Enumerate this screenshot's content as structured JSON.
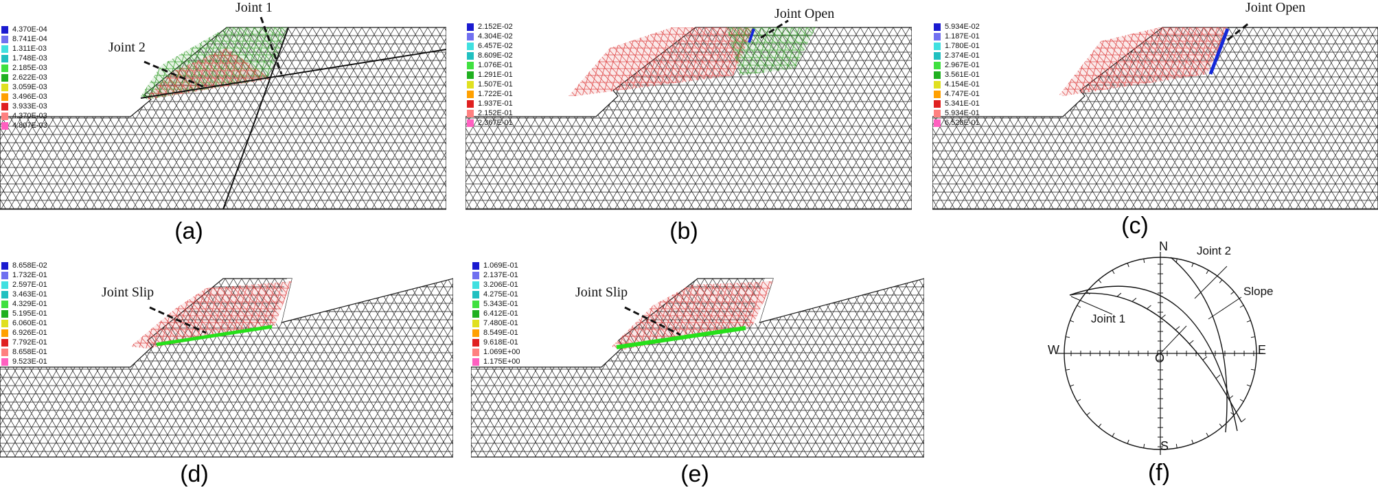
{
  "colors": {
    "mesh": "#1a1a1a",
    "blue_joint": "#1428d8",
    "green_joint": "#26e01a",
    "deform_red": "#e04a4a",
    "deform_green": "#3aa030",
    "deform_blue": "#2c4cc8",
    "legend_scale": [
      "#1a1ad0",
      "#7070f0",
      "#40e0e0",
      "#20c0c0",
      "#40e040",
      "#20b020",
      "#e0e020",
      "#ffa000",
      "#e02020",
      "#ff8080",
      "#ff60c0",
      "#404040"
    ]
  },
  "panels": {
    "a": {
      "caption": "(a)",
      "legend": [
        "4.370E-04",
        "8.741E-04",
        "1.311E-03",
        "1.748E-03",
        "2.185E-03",
        "2.622E-03",
        "3.059E-03",
        "3.496E-03",
        "3.933E-03",
        "4.370E-03",
        "4.807E-03"
      ],
      "labels": {
        "joint1": "Joint 1",
        "joint2": "Joint 2"
      }
    },
    "b": {
      "caption": "(b)",
      "legend": [
        "2.152E-02",
        "4.304E-02",
        "6.457E-02",
        "8.609E-02",
        "1.076E-01",
        "1.291E-01",
        "1.507E-01",
        "1.722E-01",
        "1.937E-01",
        "2.152E-01",
        "2.367E-01"
      ],
      "labels": {
        "joint_open": "Joint Open"
      }
    },
    "c": {
      "caption": "(c)",
      "legend": [
        "5.934E-02",
        "1.187E-01",
        "1.780E-01",
        "2.374E-01",
        "2.967E-01",
        "3.561E-01",
        "4.154E-01",
        "4.747E-01",
        "5.341E-01",
        "5.934E-01",
        "6.528E-01"
      ],
      "labels": {
        "joint_open": "Joint Open"
      }
    },
    "d": {
      "caption": "(d)",
      "legend": [
        "8.658E-02",
        "1.732E-01",
        "2.597E-01",
        "3.463E-01",
        "4.329E-01",
        "5.195E-01",
        "6.060E-01",
        "6.926E-01",
        "7.792E-01",
        "8.658E-01",
        "9.523E-01"
      ],
      "labels": {
        "joint_slip": "Joint Slip"
      }
    },
    "e": {
      "caption": "(e)",
      "legend": [
        "1.069E-01",
        "2.137E-01",
        "3.206E-01",
        "4.275E-01",
        "5.343E-01",
        "6.412E-01",
        "7.480E-01",
        "8.549E-01",
        "9.618E-01",
        "1.069E+00",
        "1.175E+00"
      ],
      "labels": {
        "joint_slip": "Joint Slip"
      }
    },
    "f": {
      "caption": "(f)",
      "labels": {
        "n": "N",
        "s": "S",
        "e": "E",
        "w": "W",
        "o": "O",
        "joint1": "Joint 1",
        "joint2": "Joint 2",
        "slope": "Slope"
      }
    }
  }
}
